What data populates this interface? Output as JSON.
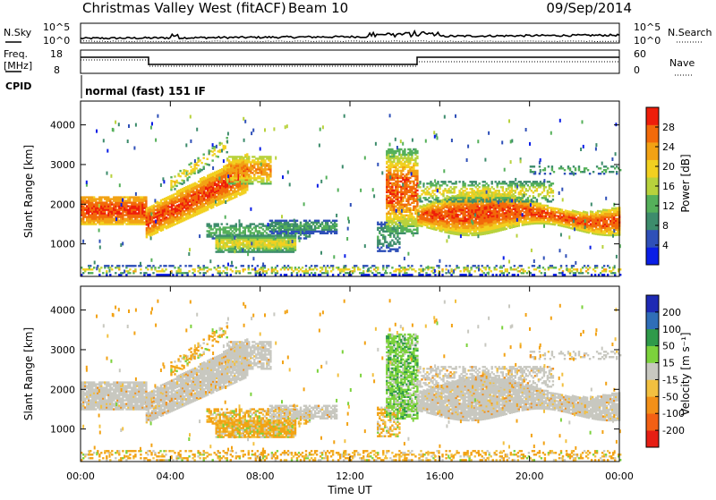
{
  "header": {
    "title": "Christmas Valley West (fitACF)",
    "beam": "Beam 10",
    "date": "09/Sep/2014"
  },
  "top_panels": {
    "nsky_label": "N.Sky",
    "nsearch_label": "N.Search",
    "noise_ticks": [
      "10^5",
      "10^0"
    ],
    "freq_label_1": "Freq.",
    "freq_label_2": "[MHz]",
    "freq_ticks": [
      "18",
      "8"
    ],
    "nave_label": "Nave",
    "nave_ticks": [
      "60",
      "0"
    ],
    "cpid_label": "CPID",
    "cpid_text": "normal (fast) 151 IF"
  },
  "chart_data": [
    {
      "type": "heatmap",
      "name": "power",
      "ylabel": "Slant Range [km]",
      "y_ticks": [
        1000,
        2000,
        3000,
        4000
      ],
      "ylim": [
        180,
        4600
      ],
      "colorbar_label": "Power [dB]",
      "colorbar_ticks": [
        4,
        8,
        12,
        16,
        20,
        24,
        28
      ],
      "colorbar_range": [
        0,
        32
      ],
      "colors": [
        "#0a1ee6",
        "#2f50b8",
        "#3d8c6c",
        "#55b05a",
        "#b8d23c",
        "#f2d020",
        "#f2a214",
        "#f26a0a",
        "#ee1e0a"
      ],
      "grid": false
    },
    {
      "type": "heatmap",
      "name": "velocity",
      "ylabel": "Slant Range [km]",
      "xlabel": "Time UT",
      "x_ticks": [
        "00:00",
        "04:00",
        "08:00",
        "12:00",
        "16:00",
        "20:00",
        "00:00"
      ],
      "y_ticks": [
        1000,
        2000,
        3000,
        4000
      ],
      "ylim": [
        180,
        4600
      ],
      "colorbar_label": "Velocity [m s⁻¹]",
      "colorbar_ticks": [
        "200",
        "100",
        "50",
        "15",
        "-15",
        "-50",
        "-100",
        "-200"
      ],
      "colors": [
        "#1e2ab4",
        "#2f6eb8",
        "#2f9a4a",
        "#7cd23c",
        "#c8c8c0",
        "#f2c040",
        "#f29018",
        "#f26014",
        "#e61e14"
      ],
      "grid": false
    }
  ]
}
